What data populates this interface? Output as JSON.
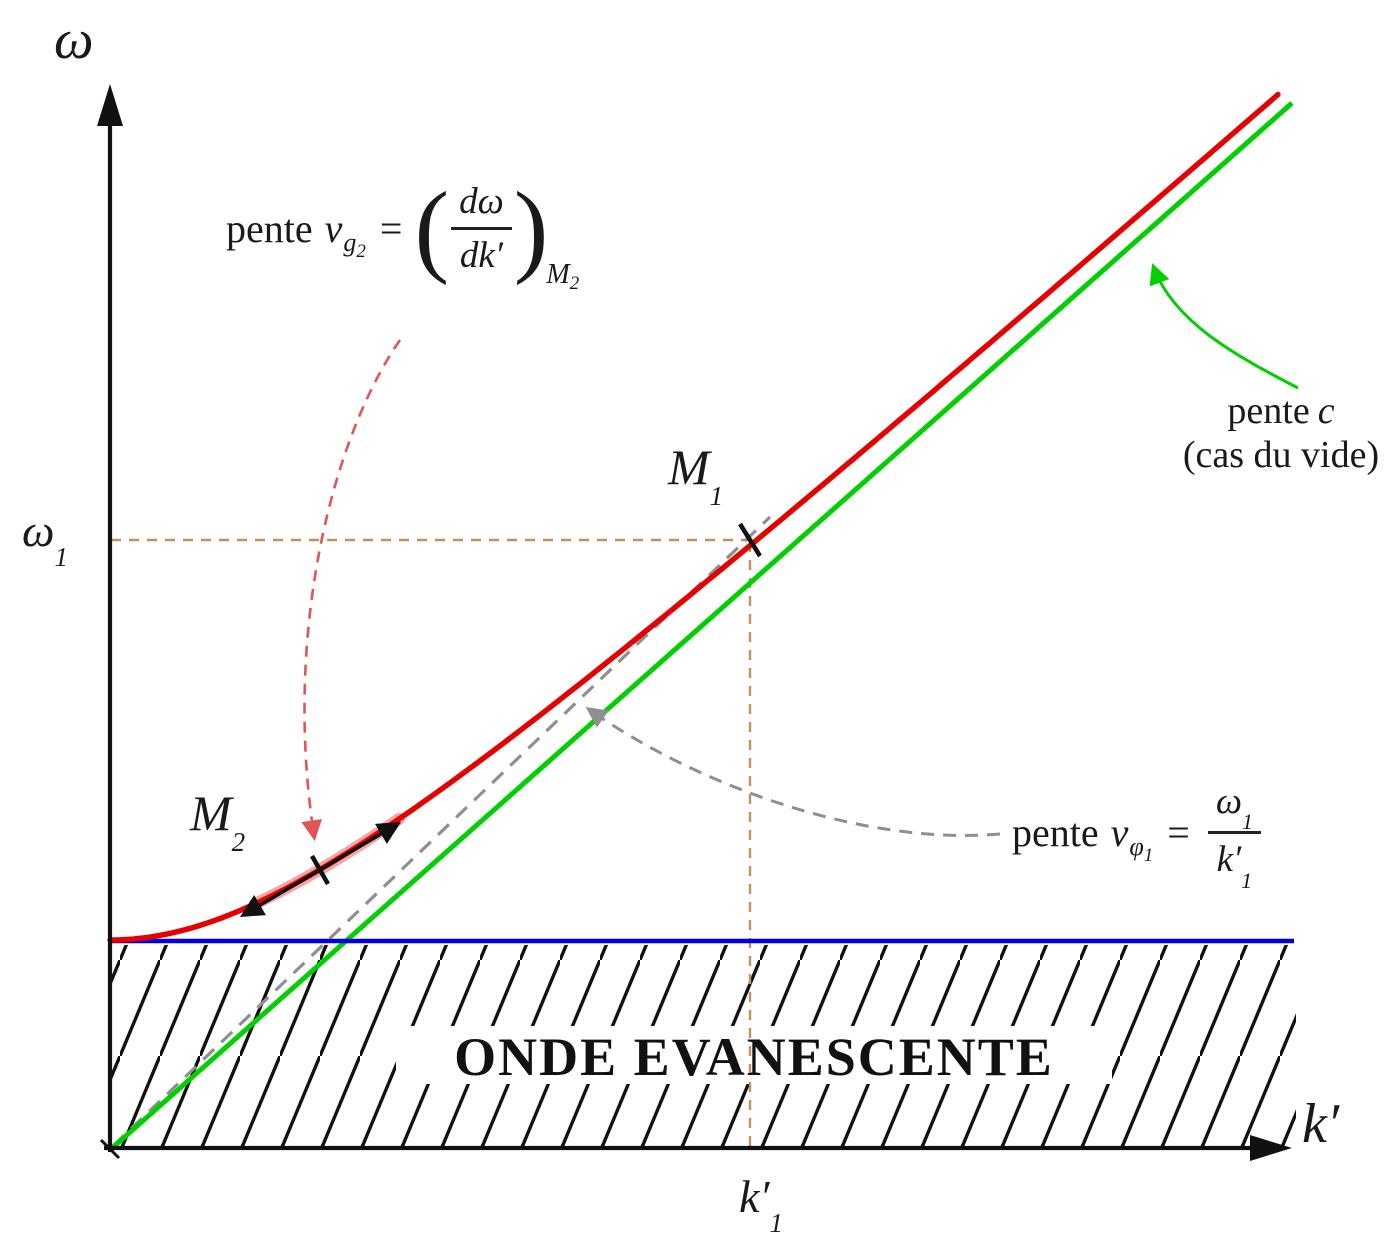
{
  "figure": {
    "axis": {
      "y_label": "ω",
      "x_label": "k′"
    },
    "ticks": {
      "omega1_base": "ω",
      "omega1_sub": "1",
      "k1_base": "k′",
      "k1_sub": "1"
    },
    "points": {
      "m1_base": "M",
      "m1_sub": "1",
      "m2_base": "M",
      "m2_sub": "2"
    },
    "region_label": "ONDE EVANESCENTE",
    "annotations": {
      "group_velocity": {
        "pre": "pente",
        "var": "v",
        "sub_main": "g",
        "sub_sub": "2",
        "eq": "=",
        "paren_open": "(",
        "paren_close": ")",
        "frac_num": "dω",
        "frac_den": "dk′",
        "at_base": "M",
        "at_sub": "2"
      },
      "vacuum": {
        "pre": "pente",
        "var": "c",
        "line2": "(cas du vide)"
      },
      "phase_velocity": {
        "pre": "pente",
        "var": "v",
        "sub_main": "φ",
        "sub_sub": "1",
        "eq": "=",
        "frac_num_base": "ω",
        "frac_num_sub": "1",
        "frac_den_base": "k′",
        "frac_den_sub": "1"
      }
    },
    "colors": {
      "curve_red": "#e60000",
      "vacuum_green": "#00d000",
      "cutoff_blue": "#0000dd",
      "phase_gray": "#8f8f8f",
      "guide_tan": "#c2925c",
      "annot_red": "#e05555",
      "ink": "#111111"
    }
  }
}
